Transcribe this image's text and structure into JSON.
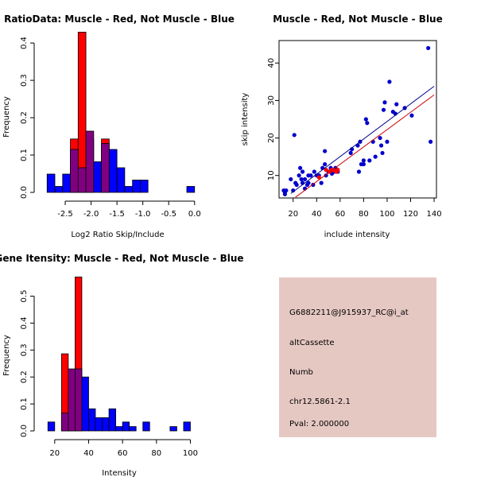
{
  "chart_data": [
    {
      "type": "bar",
      "title": "RatioData: Muscle - Red, Not Muscle - Blue",
      "xlabel": "Log2 Ratio Skip/Include",
      "ylabel": "Frequency",
      "xlim": [
        -2.9,
        0.05
      ],
      "ylim": [
        0,
        0.43
      ],
      "xticks": [
        -2.5,
        -2.0,
        -1.5,
        -1.0,
        -0.5,
        0.0
      ],
      "xtick_labels": [
        "-2.5",
        "-2.0",
        "-1.5",
        "-1.0",
        "-0.5",
        "0.0"
      ],
      "yticks": [
        0.0,
        0.1,
        0.2,
        0.3,
        0.4
      ],
      "ytick_labels": [
        "0.0",
        "0.1",
        "0.2",
        "0.3",
        "0.4"
      ],
      "series": [
        {
          "name": "Not Muscle",
          "color": "#0000ff",
          "bins": [
            [
              -2.85,
              -2.7,
              0.049
            ],
            [
              -2.7,
              -2.55,
              0.016
            ],
            [
              -2.55,
              -2.4,
              0.049
            ],
            [
              -2.4,
              -2.25,
              0.115
            ],
            [
              -2.25,
              -2.1,
              0.066
            ],
            [
              -2.1,
              -1.95,
              0.164
            ],
            [
              -1.95,
              -1.8,
              0.082
            ],
            [
              -1.8,
              -1.65,
              0.131
            ],
            [
              -1.65,
              -1.5,
              0.115
            ],
            [
              -1.5,
              -1.35,
              0.066
            ],
            [
              -1.35,
              -1.2,
              0.016
            ],
            [
              -1.2,
              -1.05,
              0.033
            ],
            [
              -1.05,
              -0.9,
              0.033
            ],
            [
              -0.15,
              0.0,
              0.016
            ]
          ]
        },
        {
          "name": "Muscle",
          "color": "#ff0000",
          "bins": [
            [
              -2.4,
              -2.25,
              0.143
            ],
            [
              -2.25,
              -2.1,
              0.429
            ],
            [
              -2.1,
              -1.95,
              0.143
            ],
            [
              -1.8,
              -1.65,
              0.143
            ]
          ]
        }
      ]
    },
    {
      "type": "scatter",
      "title": "Muscle - Red, Not Muscle - Blue",
      "xlabel": "include intensity",
      "ylabel": "skip intensity",
      "xlim": [
        8,
        142
      ],
      "ylim": [
        4,
        46
      ],
      "xticks": [
        20,
        40,
        60,
        80,
        100,
        120,
        140
      ],
      "xtick_labels": [
        "20",
        "40",
        "60",
        "80",
        "100",
        "120",
        "140"
      ],
      "yticks": [
        10,
        20,
        30,
        40
      ],
      "ytick_labels": [
        "10",
        "20",
        "30",
        "40"
      ],
      "series": [
        {
          "name": "Not Muscle",
          "color": "#0000cc",
          "points": [
            [
              12,
              6
            ],
            [
              13,
              5.5
            ],
            [
              14,
              6
            ],
            [
              13,
              5
            ],
            [
              18,
              9
            ],
            [
              20,
              6
            ],
            [
              21,
              20.8
            ],
            [
              22,
              8
            ],
            [
              23,
              7.5
            ],
            [
              25,
              10
            ],
            [
              26,
              12
            ],
            [
              27,
              9
            ],
            [
              28,
              8
            ],
            [
              28,
              11
            ],
            [
              30,
              9
            ],
            [
              30,
              6.5
            ],
            [
              32,
              7.5
            ],
            [
              33,
              8
            ],
            [
              33,
              10
            ],
            [
              35,
              10
            ],
            [
              37,
              7.5
            ],
            [
              38,
              11
            ],
            [
              40,
              10
            ],
            [
              42,
              10
            ],
            [
              44,
              8
            ],
            [
              45,
              12
            ],
            [
              47,
              16.5
            ],
            [
              47,
              13
            ],
            [
              48,
              10
            ],
            [
              50,
              11
            ],
            [
              52,
              12
            ],
            [
              53,
              10.5
            ],
            [
              55,
              11
            ],
            [
              56,
              12
            ],
            [
              58,
              11
            ],
            [
              69,
              16
            ],
            [
              70,
              17
            ],
            [
              75,
              18
            ],
            [
              76,
              11
            ],
            [
              77,
              19
            ],
            [
              78,
              13
            ],
            [
              80,
              14
            ],
            [
              80,
              13
            ],
            [
              82,
              25
            ],
            [
              83,
              24
            ],
            [
              85,
              14
            ],
            [
              88,
              19
            ],
            [
              90,
              15
            ],
            [
              94,
              20
            ],
            [
              95,
              18
            ],
            [
              96,
              16
            ],
            [
              97,
              27.5
            ],
            [
              98,
              29.5
            ],
            [
              100,
              19
            ],
            [
              102,
              35
            ],
            [
              105,
              27
            ],
            [
              107,
              26.5
            ],
            [
              108,
              29
            ],
            [
              115,
              28
            ],
            [
              121,
              26
            ],
            [
              135,
              44
            ],
            [
              137,
              19
            ]
          ]
        },
        {
          "name": "Muscle",
          "color": "#ff0000",
          "points": [
            [
              42,
              9.5
            ],
            [
              48,
              11.5
            ],
            [
              51,
              11
            ],
            [
              53,
              11.5
            ],
            [
              55,
              11.3
            ],
            [
              57,
              11
            ],
            [
              58,
              11.5
            ]
          ]
        }
      ],
      "fit_lines": [
        {
          "name": "Not Muscle fit",
          "color": "#00008b",
          "from": [
            18,
            5.2
          ],
          "to": [
            140,
            33.8
          ]
        },
        {
          "name": "Muscle fit",
          "color": "#cc0000",
          "from": [
            22,
            4.2
          ],
          "to": [
            140,
            31.5
          ]
        }
      ]
    },
    {
      "type": "bar",
      "title": "Gene Itensity: Muscle - Red, Not Muscle - Blue",
      "xlabel": "Intensity",
      "ylabel": "Frequency",
      "xlim": [
        14,
        104
      ],
      "ylim": [
        0,
        0.59
      ],
      "xticks": [
        20,
        40,
        60,
        80,
        100
      ],
      "xtick_labels": [
        "20",
        "40",
        "60",
        "80",
        "100"
      ],
      "yticks": [
        0.0,
        0.1,
        0.2,
        0.3,
        0.4,
        0.5
      ],
      "ytick_labels": [
        "0.0",
        "0.1",
        "0.2",
        "0.3",
        "0.4",
        "0.5"
      ],
      "series": [
        {
          "name": "Not Muscle",
          "color": "#0000ff",
          "bins": [
            [
              16,
              20,
              0.033
            ],
            [
              24,
              28,
              0.066
            ],
            [
              28,
              32,
              0.23
            ],
            [
              32,
              36,
              0.23
            ],
            [
              36,
              40,
              0.2
            ],
            [
              40,
              44,
              0.082
            ],
            [
              44,
              48,
              0.049
            ],
            [
              48,
              52,
              0.049
            ],
            [
              52,
              56,
              0.082
            ],
            [
              56,
              60,
              0.016
            ],
            [
              60,
              64,
              0.033
            ],
            [
              64,
              68,
              0.016
            ],
            [
              72,
              76,
              0.033
            ],
            [
              88,
              92,
              0.016
            ],
            [
              96,
              100,
              0.033
            ]
          ]
        },
        {
          "name": "Muscle",
          "color": "#ff0000",
          "bins": [
            [
              24,
              28,
              0.286
            ],
            [
              28,
              32,
              0.143
            ],
            [
              32,
              36,
              0.571
            ]
          ]
        }
      ]
    }
  ],
  "info_panel": {
    "background": "#e6c8c3",
    "probe_id": "G6882211@J915937_RC@i_at",
    "event_type": "altCassette",
    "gene": "Numb",
    "location": "chr12.5861-2.1",
    "pval": "Pval: 2.000000",
    "pval_color": "#aa0000"
  }
}
